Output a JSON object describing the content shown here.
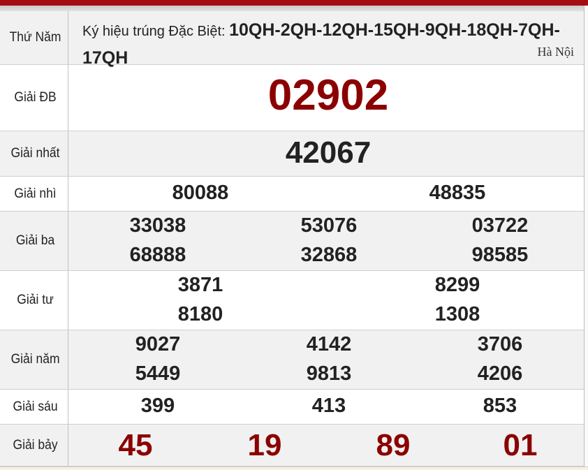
{
  "header": {
    "day": "Thứ Năm",
    "code_label": "Ký hiệu trúng Đặc Biệt:",
    "codes_line1": "10QH-2QH-12QH-15QH-9QH-18QH-7QH-",
    "codes_line2": "17QH",
    "region": "Hà Nội"
  },
  "prizes": [
    {
      "label": "Giải ĐB",
      "numbers": [
        "02902"
      ]
    },
    {
      "label": "Giải nhất",
      "numbers": [
        "42067"
      ]
    },
    {
      "label": "Giải nhì",
      "numbers": [
        "80088",
        "48835"
      ]
    },
    {
      "label": "Giải ba",
      "numbers": [
        "33038",
        "53076",
        "03722",
        "68888",
        "32868",
        "98585"
      ]
    },
    {
      "label": "Giải tư",
      "numbers": [
        "3871",
        "8299",
        "8180",
        "1308"
      ]
    },
    {
      "label": "Giải năm",
      "numbers": [
        "9027",
        "4142",
        "3706",
        "5449",
        "9813",
        "4206"
      ]
    },
    {
      "label": "Giải sáu",
      "numbers": [
        "399",
        "413",
        "853"
      ]
    },
    {
      "label": "Giải bảy",
      "numbers": [
        "45",
        "19",
        "89",
        "01"
      ]
    }
  ],
  "colors": {
    "accent": "#a50d12",
    "special": "#8b0000"
  }
}
